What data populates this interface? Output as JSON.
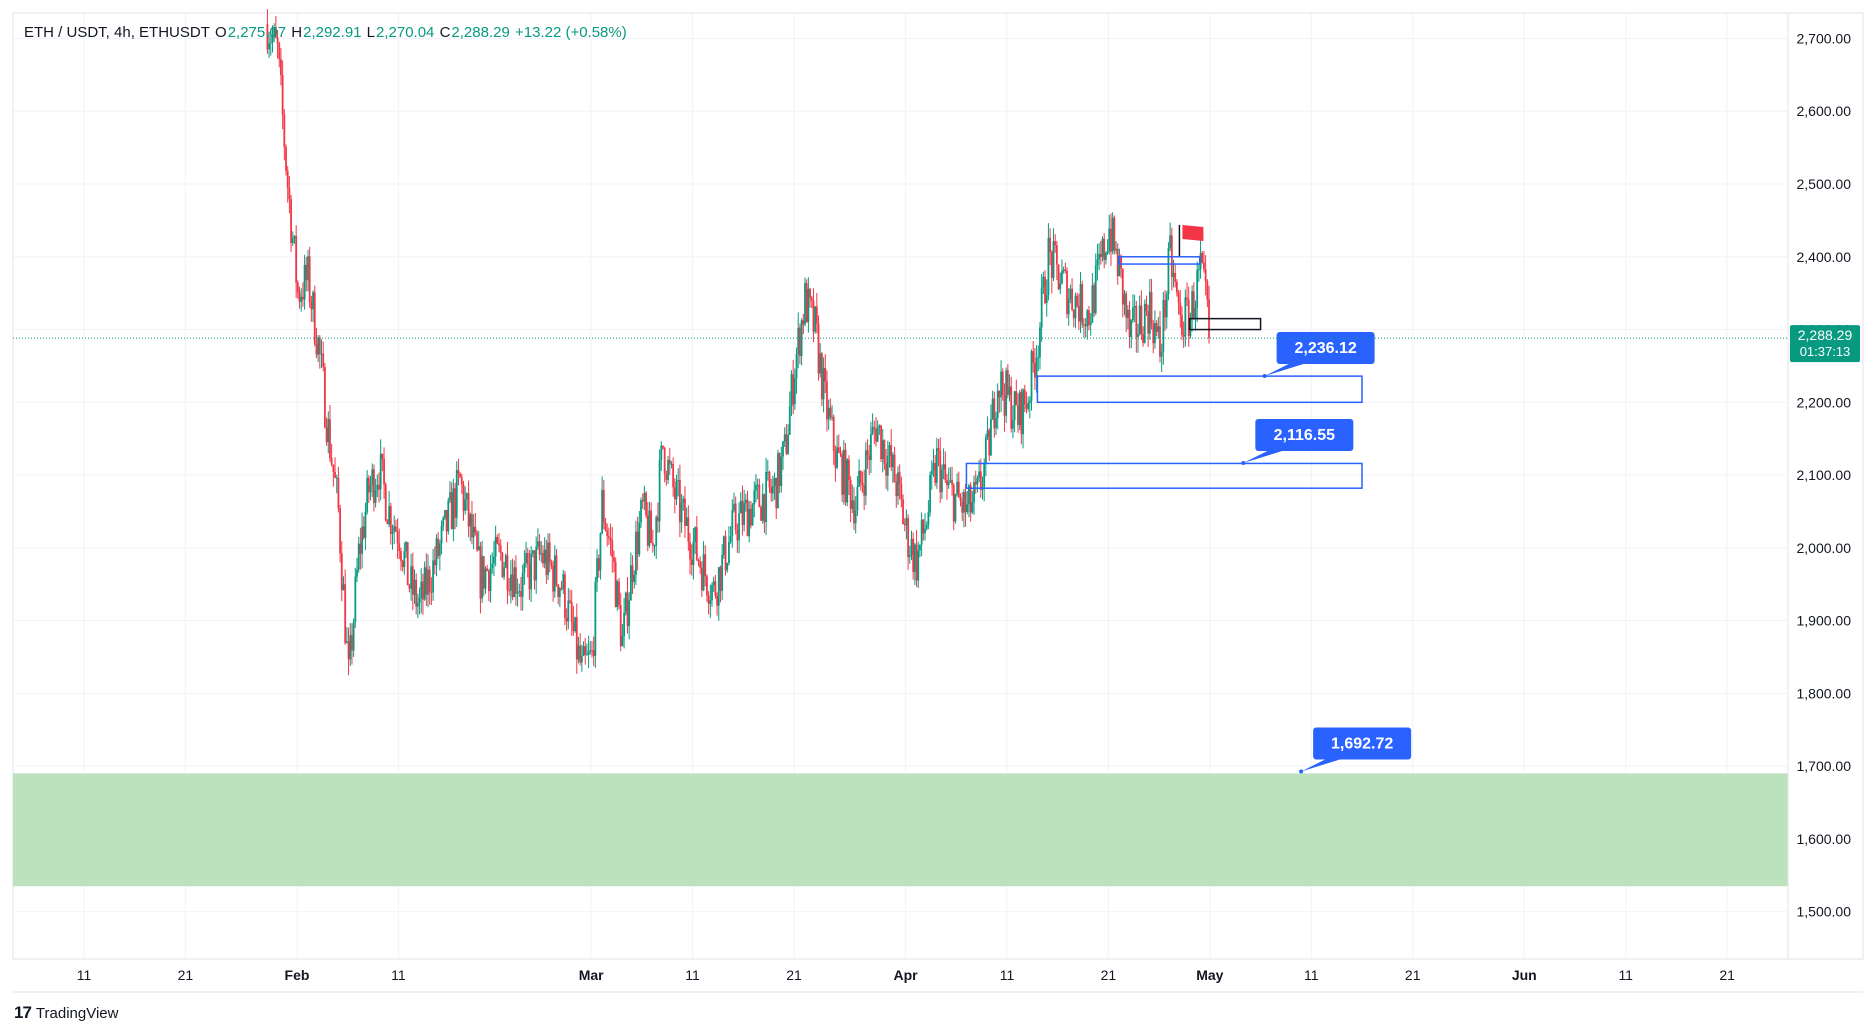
{
  "header": {
    "symbol": "ETH / USDT, 4h, ETHUSDT",
    "o_label": "O",
    "o_value": "2,275.07",
    "h_label": "H",
    "h_value": "2,292.91",
    "l_label": "L",
    "l_value": "2,270.04",
    "c_label": "C",
    "c_value": "2,288.29",
    "change": "+13.22 (+0.58%)"
  },
  "price_label": {
    "price": "2,288.29",
    "countdown": "01:37:13"
  },
  "brand": {
    "logo": "17",
    "name": "TradingView"
  },
  "colors": {
    "up": "#089981",
    "down": "#f23645",
    "accent": "#2962ff",
    "zone": "#b7dfb9",
    "grid": "#f0f3fa",
    "text": "#131722"
  },
  "icons": {
    "flag": "red-flag-icon"
  },
  "chart_data": {
    "type": "candlestick",
    "title": "ETH / USDT, 4h, ETHUSDT",
    "y_axis": {
      "ticks": [
        1500,
        1600,
        1700,
        1800,
        1900,
        2000,
        2100,
        2200,
        2300,
        2400,
        2500,
        2600,
        2700
      ],
      "tick_labels": [
        "1,500.00",
        "1,600.00",
        "1,700.00",
        "1,800.00",
        "1,900.00",
        "2,000.00",
        "2,100.00",
        "2,200.00",
        "2,300.00",
        "2,400.00",
        "2,500.00",
        "2,600.00",
        "2,700.00"
      ],
      "range": [
        1435,
        2735
      ],
      "side": "right"
    },
    "x_axis": {
      "ticks": [
        {
          "date": "2024-01-11",
          "label": "11",
          "major": false
        },
        {
          "date": "2024-01-21",
          "label": "21",
          "major": false
        },
        {
          "date": "2024-02-01",
          "label": "Feb",
          "major": true
        },
        {
          "date": "2024-02-11",
          "label": "11",
          "major": false
        },
        {
          "date": "2024-03-01",
          "label": "Mar",
          "major": true
        },
        {
          "date": "2024-03-11",
          "label": "11",
          "major": false
        },
        {
          "date": "2024-03-21",
          "label": "21",
          "major": false
        },
        {
          "date": "2024-04-01",
          "label": "Apr",
          "major": true
        },
        {
          "date": "2024-04-11",
          "label": "11",
          "major": false
        },
        {
          "date": "2024-04-21",
          "label": "21",
          "major": false
        },
        {
          "date": "2024-05-01",
          "label": "May",
          "major": true
        },
        {
          "date": "2024-05-11",
          "label": "11",
          "major": false
        },
        {
          "date": "2024-05-21",
          "label": "21",
          "major": false
        },
        {
          "date": "2024-06-01",
          "label": "Jun",
          "major": true
        },
        {
          "date": "2024-06-11",
          "label": "11",
          "major": false
        },
        {
          "date": "2024-06-21",
          "label": "21",
          "major": false
        }
      ],
      "range": [
        "2024-01-04",
        "2024-06-27"
      ]
    },
    "price_path": [
      {
        "date": "2024-01-29",
        "price": 2720
      },
      {
        "date": "2024-01-30",
        "price": 2680
      },
      {
        "date": "2024-01-31",
        "price": 2500
      },
      {
        "date": "2024-02-01",
        "price": 2350
      },
      {
        "date": "2024-02-02",
        "price": 2370
      },
      {
        "date": "2024-02-03",
        "price": 2280
      },
      {
        "date": "2024-02-04",
        "price": 2160
      },
      {
        "date": "2024-02-05",
        "price": 2050
      },
      {
        "date": "2024-02-06",
        "price": 1820
      },
      {
        "date": "2024-02-07",
        "price": 1990
      },
      {
        "date": "2024-02-08",
        "price": 2080
      },
      {
        "date": "2024-02-09",
        "price": 2110
      },
      {
        "date": "2024-02-10",
        "price": 2050
      },
      {
        "date": "2024-02-11",
        "price": 2020
      },
      {
        "date": "2024-02-12",
        "price": 1950
      },
      {
        "date": "2024-02-13",
        "price": 1920
      },
      {
        "date": "2024-02-15",
        "price": 2000
      },
      {
        "date": "2024-02-17",
        "price": 2090
      },
      {
        "date": "2024-02-19",
        "price": 1960
      },
      {
        "date": "2024-02-21",
        "price": 1990
      },
      {
        "date": "2024-02-23",
        "price": 1950
      },
      {
        "date": "2024-02-25",
        "price": 1990
      },
      {
        "date": "2024-02-27",
        "price": 1950
      },
      {
        "date": "2024-02-29",
        "price": 1830
      },
      {
        "date": "2024-03-01",
        "price": 1850
      },
      {
        "date": "2024-03-02",
        "price": 2060
      },
      {
        "date": "2024-03-03",
        "price": 1990
      },
      {
        "date": "2024-03-04",
        "price": 1870
      },
      {
        "date": "2024-03-05",
        "price": 1980
      },
      {
        "date": "2024-03-06",
        "price": 2050
      },
      {
        "date": "2024-03-07",
        "price": 2000
      },
      {
        "date": "2024-03-08",
        "price": 2140
      },
      {
        "date": "2024-03-09",
        "price": 2080
      },
      {
        "date": "2024-03-10",
        "price": 2040
      },
      {
        "date": "2024-03-12",
        "price": 1970
      },
      {
        "date": "2024-03-13",
        "price": 1940
      },
      {
        "date": "2024-03-15",
        "price": 2030
      },
      {
        "date": "2024-03-17",
        "price": 2060
      },
      {
        "date": "2024-03-19",
        "price": 2080
      },
      {
        "date": "2024-03-20",
        "price": 2130
      },
      {
        "date": "2024-03-21",
        "price": 2250
      },
      {
        "date": "2024-03-22",
        "price": 2340
      },
      {
        "date": "2024-03-23",
        "price": 2300
      },
      {
        "date": "2024-03-24",
        "price": 2200
      },
      {
        "date": "2024-03-25",
        "price": 2130
      },
      {
        "date": "2024-03-27",
        "price": 2060
      },
      {
        "date": "2024-03-29",
        "price": 2170
      },
      {
        "date": "2024-03-31",
        "price": 2090
      },
      {
        "date": "2024-04-01",
        "price": 2020
      },
      {
        "date": "2024-04-02",
        "price": 1980
      },
      {
        "date": "2024-04-03",
        "price": 2040
      },
      {
        "date": "2024-04-04",
        "price": 2120
      },
      {
        "date": "2024-04-05",
        "price": 2080
      },
      {
        "date": "2024-04-07",
        "price": 2050
      },
      {
        "date": "2024-04-08",
        "price": 2070
      },
      {
        "date": "2024-04-09",
        "price": 2130
      },
      {
        "date": "2024-04-10",
        "price": 2230
      },
      {
        "date": "2024-04-12",
        "price": 2180
      },
      {
        "date": "2024-04-13",
        "price": 2210
      },
      {
        "date": "2024-04-14",
        "price": 2290
      },
      {
        "date": "2024-04-15",
        "price": 2400
      },
      {
        "date": "2024-04-17",
        "price": 2350
      },
      {
        "date": "2024-04-19",
        "price": 2320
      },
      {
        "date": "2024-04-21",
        "price": 2440
      },
      {
        "date": "2024-04-22",
        "price": 2380
      },
      {
        "date": "2024-04-23",
        "price": 2290
      },
      {
        "date": "2024-04-25",
        "price": 2330
      },
      {
        "date": "2024-04-26",
        "price": 2270
      },
      {
        "date": "2024-04-27",
        "price": 2400
      },
      {
        "date": "2024-04-28",
        "price": 2310
      },
      {
        "date": "2024-04-29",
        "price": 2320
      },
      {
        "date": "2024-04-30",
        "price": 2380
      },
      {
        "date": "2024-05-01",
        "price": 2288.29
      }
    ],
    "current_price": 2288.29,
    "annotations": [
      {
        "label": "2,236.12",
        "value": 2236.12,
        "zone": [
          2200,
          2236
        ],
        "zone_dates": [
          "2024-04-14",
          "2024-05-16"
        ]
      },
      {
        "label": "2,116.55",
        "value": 2116.55,
        "zone": [
          2082,
          2116
        ],
        "zone_dates": [
          "2024-04-07",
          "2024-05-16"
        ]
      },
      {
        "label": "1,692.72",
        "value": 1692.72
      }
    ],
    "support_zone": [
      1535,
      1690
    ],
    "markers": [
      {
        "type": "flag",
        "date": "2024-04-28",
        "value": 2430
      },
      {
        "type": "box",
        "dates": [
          "2024-04-22",
          "2024-04-30"
        ],
        "range": [
          2390,
          2400
        ],
        "color": "#2962ff"
      },
      {
        "type": "box",
        "dates": [
          "2024-04-29",
          "2024-05-06"
        ],
        "range": [
          2300,
          2315
        ],
        "color": "#131722"
      }
    ]
  }
}
